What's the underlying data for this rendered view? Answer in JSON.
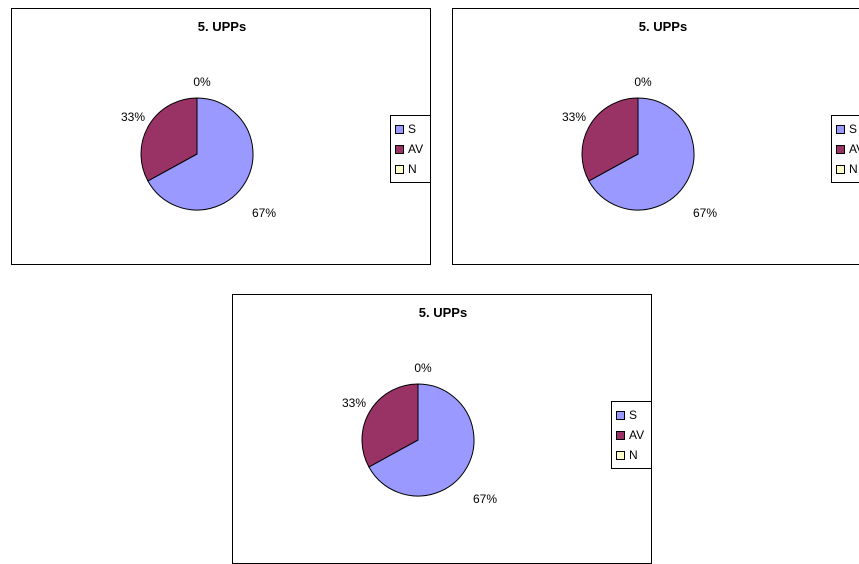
{
  "colors": {
    "S": "#9999ff",
    "AV": "#993366",
    "N": "#ffffcc",
    "outline": "#000000"
  },
  "chart_data": [
    {
      "type": "pie",
      "title": "5. UPPs",
      "categories": [
        "S",
        "AV",
        "N"
      ],
      "values": [
        67,
        33,
        0
      ],
      "data_labels": [
        "67%",
        "33%",
        "0%"
      ],
      "legend": {
        "placement": "right",
        "entries": [
          "S",
          "AV",
          "N"
        ]
      }
    },
    {
      "type": "pie",
      "title": "5. UPPs",
      "categories": [
        "S",
        "AV",
        "N"
      ],
      "values": [
        67,
        33,
        0
      ],
      "data_labels": [
        "67%",
        "33%",
        "0%"
      ],
      "legend": {
        "placement": "right",
        "entries": [
          "S",
          "AV",
          "N"
        ]
      }
    },
    {
      "type": "pie",
      "title": "5. UPPs",
      "categories": [
        "S",
        "AV",
        "N"
      ],
      "values": [
        67,
        33,
        0
      ],
      "data_labels": [
        "67%",
        "33%",
        "0%"
      ],
      "legend": {
        "placement": "right",
        "entries": [
          "S",
          "AV",
          "N"
        ]
      }
    }
  ]
}
